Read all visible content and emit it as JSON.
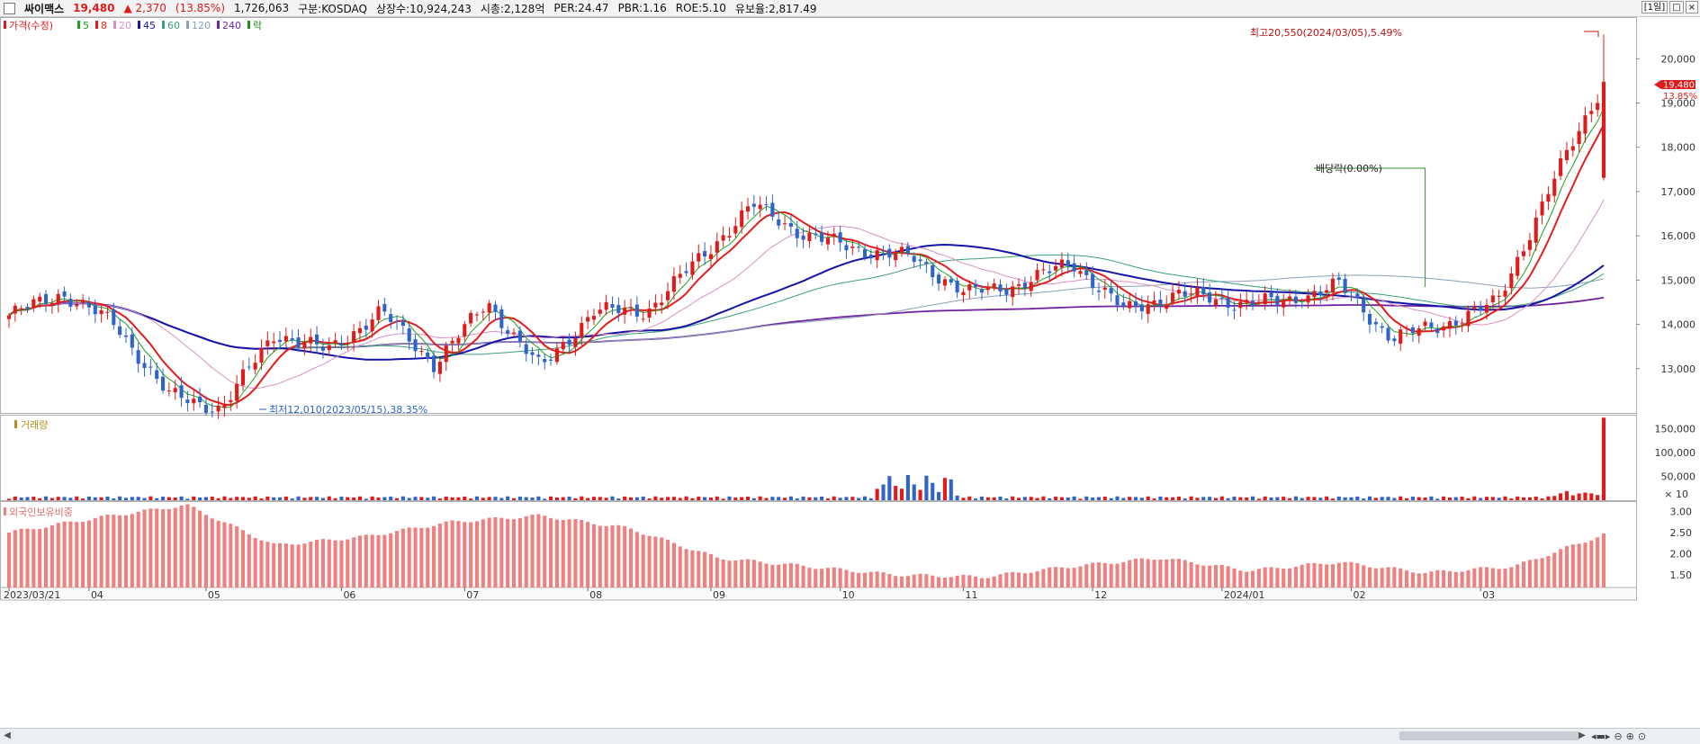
{
  "header": {
    "name": "싸이맥스",
    "price": "19,480",
    "change": "▲  2,370",
    "pct": "(13.85%)",
    "volume": "1,726,063",
    "market": "구분:KOSDAQ",
    "shares": "상장수:10,924,243",
    "mktcap": "시총:2,128억",
    "per": "PER:24.47",
    "pbr": "PBR:1.16",
    "roe": "ROE:5.10",
    "float": "유보율:2,817.49",
    "period": "[1일]"
  },
  "legend": {
    "price_label": "가격(수정)",
    "ma": [
      "5",
      "8",
      "20",
      "45",
      "60",
      "120",
      "240"
    ],
    "ex_label": "락",
    "volume_label": "거래량",
    "foreign_label": "외국인보유비중"
  },
  "annotations": {
    "high": "최고20,550(2024/03/05),5.49%",
    "low": "최저12,010(2023/05/15),38.35%",
    "dividend": "배당락(0.00%)",
    "current_price": "19,480",
    "current_pct": "13.85%",
    "volume_unit": "× 10"
  },
  "colors": {
    "up": "#e11b1b",
    "down": "#2f64c8",
    "ma5": "#22a022",
    "ma8": "#e31d1d",
    "ma20": "#d890c8",
    "ma45": "#1515a8",
    "ma60": "#3aa07a",
    "ma120": "#8aa0b8",
    "ma240": "#7022a0",
    "foreign_bar": "#f08080"
  },
  "chart_data": {
    "type": "candlestick",
    "price_axis": {
      "ticks": [
        13000,
        14000,
        15000,
        16000,
        17000,
        18000,
        19000,
        20000
      ],
      "ylim": [
        12000,
        20900
      ]
    },
    "volume_axis": {
      "ticks": [
        50000,
        100000,
        150000
      ],
      "ylim": [
        0,
        175000
      ]
    },
    "foreign_axis": {
      "ticks": [
        1.5,
        2.0,
        2.5,
        3.0
      ],
      "ylim": [
        1.2,
        3.2
      ]
    },
    "x_labels": [
      "2023/03/21",
      "04",
      "05",
      "06",
      "07",
      "08",
      "09",
      "10",
      "11",
      "12",
      "2024/01",
      "02",
      "03"
    ],
    "keyframes": [
      [
        "2023/03/21",
        14200
      ],
      [
        "04",
        14700
      ],
      [
        "04-mid",
        14000
      ],
      [
        "05",
        12400
      ],
      [
        "2023/05/15",
        12100
      ],
      [
        "06",
        13800
      ],
      [
        "06-mid",
        13400
      ],
      [
        "07",
        14300
      ],
      [
        "07-mid",
        13100
      ],
      [
        "07-late",
        14500
      ],
      [
        "08",
        13000
      ],
      [
        "08-mid",
        14300
      ],
      [
        "08-late",
        14300
      ],
      [
        "09",
        15500
      ],
      [
        "09-mid",
        16700
      ],
      [
        "09-late",
        16000
      ],
      [
        "10",
        15700
      ],
      [
        "10-mid",
        15500
      ],
      [
        "11",
        14700
      ],
      [
        "11-mid",
        14900
      ],
      [
        "11-late",
        15400
      ],
      [
        "12",
        14300
      ],
      [
        "12-mid",
        14700
      ],
      [
        "2024/01",
        14500
      ],
      [
        "01-mid",
        14500
      ],
      [
        "01-late",
        14900
      ],
      [
        "02",
        13700
      ],
      [
        "02-mid",
        14000
      ],
      [
        "02-late",
        14500
      ],
      [
        "03",
        17100
      ],
      [
        "2024/03/05",
        19480
      ]
    ],
    "last_candle": {
      "open": 17310,
      "high": 20550,
      "low": 17250,
      "close": 19480,
      "volume": 1726063
    },
    "foreign_ratio_keyframes": [
      2.5,
      2.85,
      3.15,
      2.2,
      2.4,
      2.75,
      2.9,
      2.6,
      1.9,
      1.7,
      1.5,
      1.45,
      1.7,
      1.9,
      1.6,
      1.8,
      1.55,
      1.7,
      2.45
    ]
  }
}
